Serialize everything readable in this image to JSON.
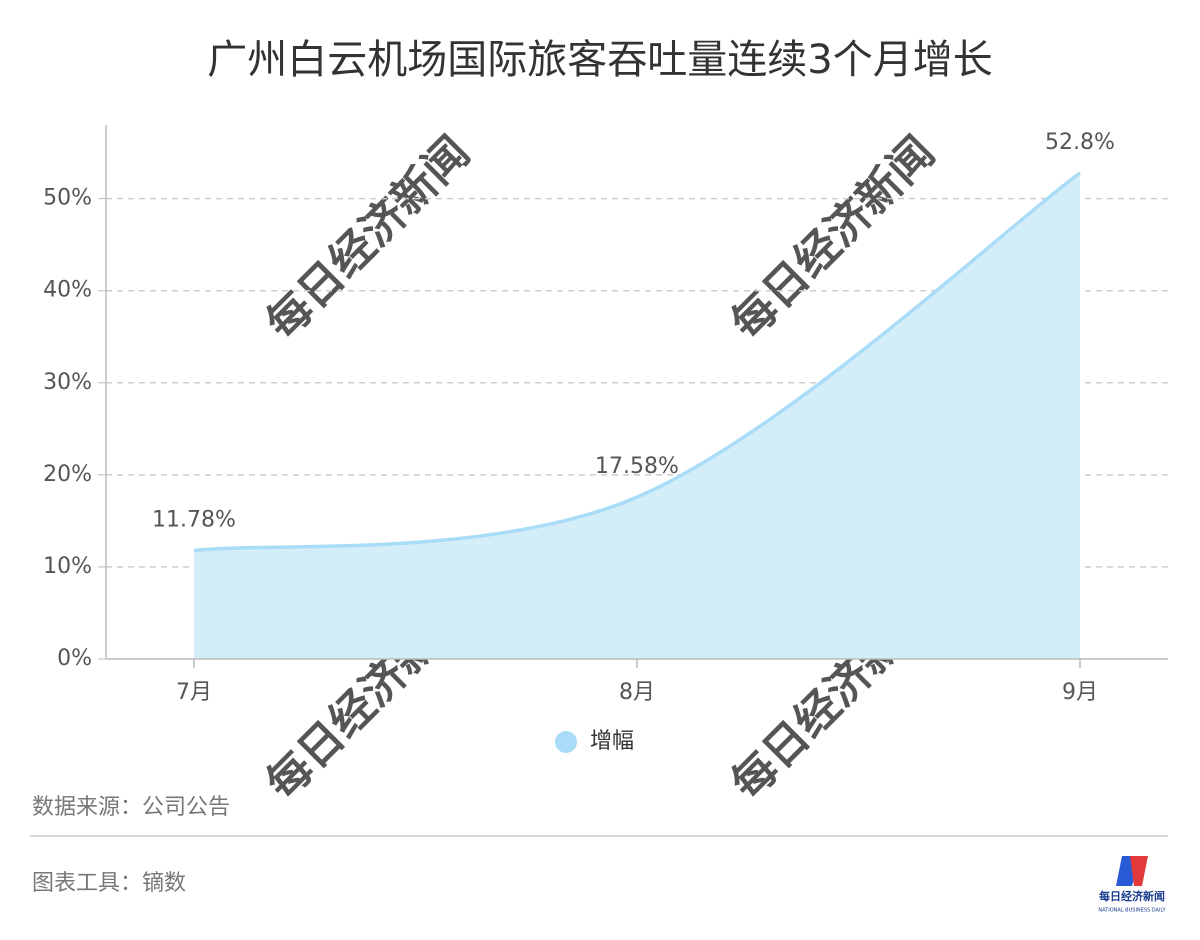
{
  "chart_data": {
    "type": "area",
    "title": "广州白云机场国际旅客吞吐量连续3个月增长",
    "categories": [
      "7月",
      "8月",
      "9月"
    ],
    "series": [
      {
        "name": "增幅",
        "color": "#a9dcf6",
        "fill": "#d3edf9",
        "values": [
          11.78,
          17.58,
          52.8
        ],
        "value_labels": [
          "11.78%",
          "17.58%",
          "52.8%"
        ]
      }
    ],
    "ylim": [
      0,
      58
    ],
    "yticks": [
      {
        "value": 0,
        "label": "0%"
      },
      {
        "value": 10,
        "label": "10%"
      },
      {
        "value": 20,
        "label": "20%"
      },
      {
        "value": 30,
        "label": "30%"
      },
      {
        "value": 40,
        "label": "40%"
      },
      {
        "value": 50,
        "label": "50%"
      }
    ],
    "grid": true,
    "smooth": true,
    "legend": "bottom"
  },
  "watermark": "每日经济新闻",
  "footer": {
    "source": "数据来源：公司公告",
    "tool": "图表工具：镝数",
    "logo_name": "每日经济新闻",
    "logo_subtitle": "NATIONAL BUSINESS DAILY"
  }
}
